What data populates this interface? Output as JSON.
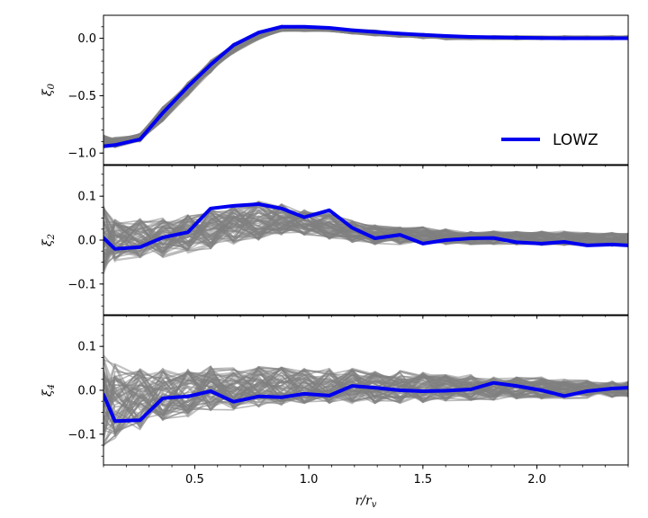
{
  "chart_data": [
    {
      "type": "line",
      "panel": "xi0",
      "ylabel": "ξ0",
      "xlim": [
        0.1,
        2.4
      ],
      "ylim": [
        -1.1,
        0.2
      ],
      "yticks": [
        -1.0,
        -0.5,
        0.0
      ],
      "ytick_labels": [
        "−1.0",
        "−0.5",
        "0.0"
      ],
      "yminor": [
        -1.0,
        -0.9,
        -0.8,
        -0.7,
        -0.6,
        -0.5,
        -0.4,
        -0.3,
        -0.2,
        -0.1,
        0.0,
        0.1
      ],
      "band": {
        "x": [
          0.1,
          0.15,
          0.26,
          0.36,
          0.47,
          0.57,
          0.67,
          0.78,
          0.88,
          0.98,
          1.09,
          1.19,
          1.29,
          1.4,
          1.5,
          1.6,
          1.71,
          1.81,
          1.91,
          2.02,
          2.12,
          2.22,
          2.33,
          2.4
        ],
        "lower": [
          -0.96,
          -0.95,
          -0.9,
          -0.72,
          -0.5,
          -0.3,
          -0.13,
          -0.01,
          0.06,
          0.06,
          0.06,
          0.04,
          0.02,
          0.01,
          0.0,
          -0.01,
          -0.01,
          -0.01,
          -0.01,
          -0.01,
          -0.01,
          -0.01,
          -0.01,
          -0.01
        ],
        "upper": [
          -0.84,
          -0.86,
          -0.83,
          -0.6,
          -0.38,
          -0.19,
          -0.04,
          0.06,
          0.11,
          0.1,
          0.09,
          0.08,
          0.07,
          0.05,
          0.04,
          0.03,
          0.02,
          0.02,
          0.02,
          0.02,
          0.02,
          0.02,
          0.02,
          0.02
        ]
      },
      "series": [
        {
          "name": "LOWZ",
          "x": [
            0.1,
            0.15,
            0.26,
            0.36,
            0.47,
            0.57,
            0.67,
            0.78,
            0.88,
            0.98,
            1.09,
            1.19,
            1.29,
            1.4,
            1.5,
            1.6,
            1.71,
            1.81,
            1.91,
            2.02,
            2.12,
            2.22,
            2.33,
            2.4
          ],
          "y": [
            -0.94,
            -0.93,
            -0.88,
            -0.65,
            -0.42,
            -0.23,
            -0.06,
            0.05,
            0.1,
            0.1,
            0.09,
            0.07,
            0.055,
            0.04,
            0.03,
            0.02,
            0.012,
            0.008,
            0.005,
            0.002,
            0.0,
            0.0,
            0.0,
            0.0
          ]
        }
      ],
      "legend": {
        "entries": [
          "LOWZ"
        ],
        "placement": "lower-right"
      }
    },
    {
      "type": "line",
      "panel": "xi2",
      "ylabel": "ξ2",
      "xlim": [
        0.1,
        2.4
      ],
      "ylim": [
        -0.17,
        0.17
      ],
      "yticks": [
        -0.1,
        0.0,
        0.1
      ],
      "ytick_labels": [
        "−0.1",
        "0.0",
        "0.1"
      ],
      "yminor": [
        -0.15,
        -0.125,
        -0.1,
        -0.075,
        -0.05,
        -0.025,
        0.0,
        0.025,
        0.05,
        0.075,
        0.1,
        0.125,
        0.15
      ],
      "band": {
        "x": [
          0.1,
          0.15,
          0.26,
          0.36,
          0.47,
          0.57,
          0.67,
          0.78,
          0.88,
          0.98,
          1.09,
          1.19,
          1.29,
          1.4,
          1.5,
          1.6,
          1.71,
          1.81,
          1.91,
          2.02,
          2.12,
          2.22,
          2.33,
          2.4
        ],
        "lower": [
          -0.08,
          -0.05,
          -0.04,
          -0.04,
          -0.03,
          -0.02,
          -0.01,
          0.0,
          0.01,
          0.01,
          0.0,
          -0.005,
          -0.01,
          -0.01,
          -0.01,
          -0.01,
          -0.01,
          -0.01,
          -0.01,
          -0.012,
          -0.012,
          -0.013,
          -0.014,
          -0.015
        ],
        "upper": [
          0.08,
          0.05,
          0.05,
          0.05,
          0.06,
          0.07,
          0.08,
          0.09,
          0.085,
          0.07,
          0.06,
          0.045,
          0.035,
          0.03,
          0.03,
          0.025,
          0.02,
          0.02,
          0.02,
          0.02,
          0.02,
          0.018,
          0.017,
          0.016
        ]
      },
      "series": [
        {
          "name": "LOWZ",
          "x": [
            0.1,
            0.15,
            0.26,
            0.36,
            0.47,
            0.57,
            0.67,
            0.78,
            0.88,
            0.98,
            1.09,
            1.19,
            1.29,
            1.4,
            1.5,
            1.6,
            1.71,
            1.81,
            1.91,
            2.02,
            2.12,
            2.22,
            2.33,
            2.4
          ],
          "y": [
            0.005,
            -0.02,
            -0.016,
            0.006,
            0.018,
            0.072,
            0.078,
            0.082,
            0.072,
            0.052,
            0.068,
            0.028,
            0.004,
            0.012,
            -0.008,
            0.0,
            0.004,
            0.005,
            -0.005,
            -0.008,
            -0.004,
            -0.012,
            -0.01,
            -0.012
          ]
        }
      ]
    },
    {
      "type": "line",
      "panel": "xi4",
      "ylabel": "ξ4",
      "xlabel": "r/rv",
      "xlim": [
        0.1,
        2.4
      ],
      "ylim": [
        -0.17,
        0.17
      ],
      "xticks": [
        0.5,
        1.0,
        1.5,
        2.0
      ],
      "xtick_labels": [
        "0.5",
        "1.0",
        "1.5",
        "2.0"
      ],
      "xminor": [
        0.1,
        0.2,
        0.3,
        0.4,
        0.5,
        0.6,
        0.7,
        0.8,
        0.9,
        1.0,
        1.1,
        1.2,
        1.3,
        1.4,
        1.5,
        1.6,
        1.7,
        1.8,
        1.9,
        2.0,
        2.1,
        2.2,
        2.3,
        2.4
      ],
      "yticks": [
        -0.1,
        0.0,
        0.1
      ],
      "ytick_labels": [
        "−0.1",
        "0.0",
        "0.1"
      ],
      "yminor": [
        -0.15,
        -0.125,
        -0.1,
        -0.075,
        -0.05,
        -0.025,
        0.0,
        0.025,
        0.05,
        0.075,
        0.1,
        0.125,
        0.15
      ],
      "band": {
        "x": [
          0.1,
          0.15,
          0.26,
          0.36,
          0.47,
          0.57,
          0.67,
          0.78,
          0.88,
          0.98,
          1.09,
          1.19,
          1.29,
          1.4,
          1.5,
          1.6,
          1.71,
          1.81,
          1.91,
          2.02,
          2.12,
          2.22,
          2.33,
          2.4
        ],
        "lower": [
          -0.13,
          -0.11,
          -0.09,
          -0.07,
          -0.06,
          -0.05,
          -0.045,
          -0.04,
          -0.035,
          -0.03,
          -0.03,
          -0.03,
          -0.03,
          -0.03,
          -0.028,
          -0.026,
          -0.024,
          -0.022,
          -0.02,
          -0.02,
          -0.02,
          -0.018,
          -0.016,
          -0.015
        ],
        "upper": [
          0.08,
          0.06,
          0.05,
          0.05,
          0.05,
          0.055,
          0.055,
          0.055,
          0.055,
          0.05,
          0.05,
          0.05,
          0.045,
          0.045,
          0.04,
          0.035,
          0.035,
          0.03,
          0.03,
          0.03,
          0.025,
          0.025,
          0.022,
          0.02
        ]
      },
      "series": [
        {
          "name": "LOWZ",
          "x": [
            0.1,
            0.15,
            0.26,
            0.36,
            0.47,
            0.57,
            0.67,
            0.78,
            0.88,
            0.98,
            1.09,
            1.19,
            1.29,
            1.4,
            1.5,
            1.6,
            1.71,
            1.81,
            1.91,
            2.02,
            2.12,
            2.22,
            2.33,
            2.4
          ],
          "y": [
            -0.01,
            -0.07,
            -0.068,
            -0.018,
            -0.014,
            -0.002,
            -0.026,
            -0.014,
            -0.016,
            -0.008,
            -0.012,
            0.01,
            0.006,
            0.0,
            -0.002,
            -0.001,
            0.002,
            0.017,
            0.01,
            0.0,
            -0.013,
            -0.002,
            0.004,
            0.006
          ]
        }
      ]
    }
  ],
  "colors": {
    "lowz": "#0000ee",
    "mocks": "#808080",
    "mocks_light": "#bdbdbd",
    "axes": "#000000"
  }
}
